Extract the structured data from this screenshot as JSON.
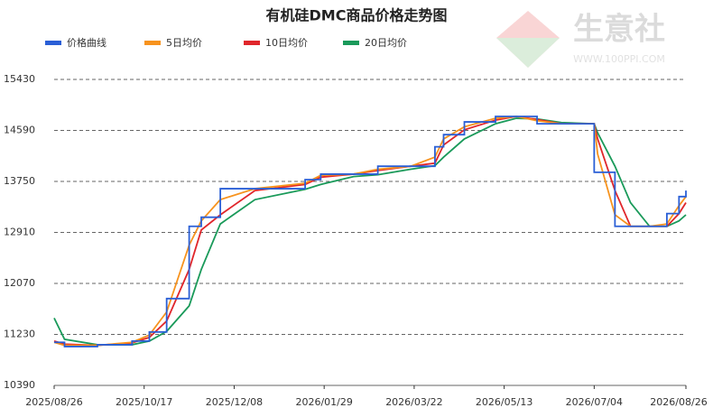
{
  "chart_data": {
    "type": "line",
    "title": "有机硅DMC商品价格走势图",
    "x": [
      "2025/08/26",
      "2025/09/01",
      "2025/09/20",
      "2025/10/10",
      "2025/10/20",
      "2025/10/30",
      "2025/11/12",
      "2025/11/19",
      "2025/11/30",
      "2025/12/20",
      "2026/01/18",
      "2026/01/27",
      "2026/02/15",
      "2026/03/01",
      "2026/03/20",
      "2026/04/03",
      "2026/04/08",
      "2026/04/20",
      "2026/05/08",
      "2026/05/20",
      "2026/06/01",
      "2026/06/15",
      "2026/07/04",
      "2026/07/06",
      "2026/07/16",
      "2026/07/25",
      "2026/08/05",
      "2026/08/15",
      "2026/08/22",
      "2026/08/26"
    ],
    "series": [
      {
        "name": "价格曲线",
        "color": "#2a5fd6",
        "step": true,
        "values": [
          11100,
          11030,
          11060,
          11120,
          11270,
          11820,
          13010,
          13160,
          13630,
          13630,
          13780,
          13870,
          13870,
          14000,
          14000,
          14320,
          14520,
          14730,
          14820,
          14820,
          14700,
          14700,
          13900,
          13900,
          13010,
          13010,
          13010,
          13220,
          13500,
          13600
        ]
      },
      {
        "name": "5日均价",
        "color": "#f7931e",
        "step": false,
        "values": [
          11100,
          11050,
          11050,
          11100,
          11220,
          11600,
          12700,
          13100,
          13450,
          13630,
          13720,
          13850,
          13870,
          13950,
          14000,
          14150,
          14450,
          14650,
          14790,
          14820,
          14750,
          14700,
          14700,
          14200,
          13200,
          13010,
          13010,
          13050,
          13350,
          13500
        ]
      },
      {
        "name": "10日均价",
        "color": "#e0262b",
        "step": false,
        "values": [
          11120,
          11070,
          11050,
          11090,
          11180,
          11450,
          12300,
          12950,
          13200,
          13600,
          13700,
          13820,
          13870,
          13930,
          14000,
          14050,
          14350,
          14600,
          14760,
          14820,
          14770,
          14700,
          14700,
          14450,
          13600,
          13010,
          13010,
          13010,
          13220,
          13400
        ]
      },
      {
        "name": "20日均价",
        "color": "#1a9a5a",
        "step": false,
        "values": [
          11500,
          11150,
          11060,
          11060,
          11120,
          11280,
          11700,
          12300,
          13050,
          13450,
          13620,
          13700,
          13830,
          13860,
          13950,
          14010,
          14150,
          14450,
          14700,
          14790,
          14780,
          14720,
          14700,
          14550,
          14000,
          13400,
          13010,
          13010,
          13100,
          13200
        ]
      }
    ],
    "xlim": [
      "2025/08/26",
      "2026/08/26"
    ],
    "xticks": [
      "2025/08/26",
      "2025/10/17",
      "2025/12/08",
      "2026/01/29",
      "2026/03/22",
      "2026/05/13",
      "2026/07/04",
      "2026/08/26"
    ],
    "ylim": [
      10390,
      15430
    ],
    "yticks": [
      10390,
      11230,
      12070,
      12910,
      13750,
      14590,
      15430
    ],
    "grid": true,
    "legend": "top-left"
  },
  "watermark": {
    "name": "生意社",
    "url": "WWW.100PPI.COM"
  }
}
